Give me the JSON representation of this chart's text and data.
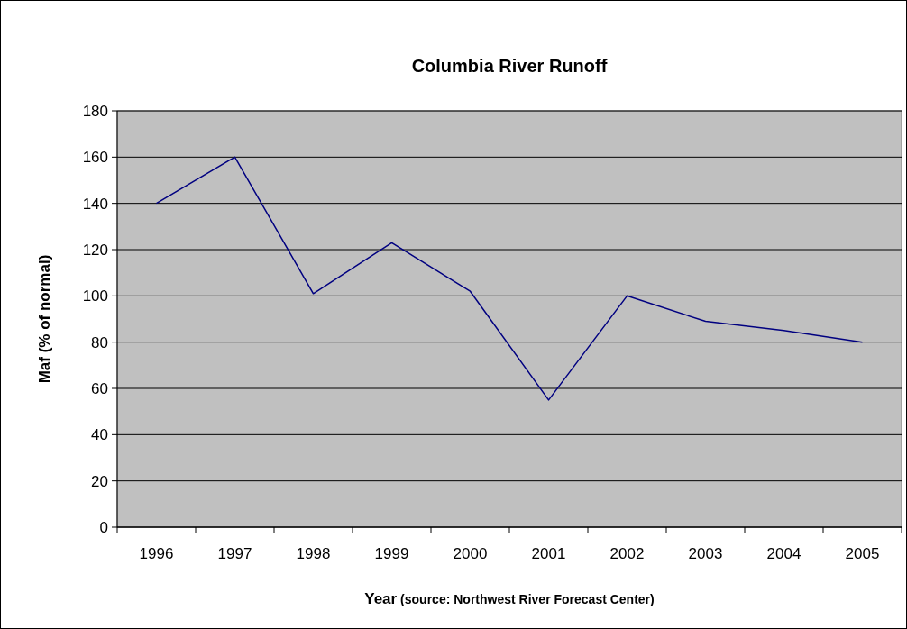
{
  "chart_data": {
    "type": "line",
    "title": "Columbia River Runoff",
    "xlabel": "Year",
    "ylabel": "Maf (% of normal)",
    "annotations": [
      "(source: Northwest River Forecast Center)"
    ],
    "categories": [
      "1996",
      "1997",
      "1998",
      "1999",
      "2000",
      "2001",
      "2002",
      "2003",
      "2004",
      "2005"
    ],
    "series": [
      {
        "color": "#000080",
        "values": [
          140,
          160,
          101,
          123,
          102,
          55,
          100,
          89,
          85,
          80
        ]
      }
    ],
    "ylim": [
      0,
      180
    ],
    "yticks": [
      0,
      20,
      40,
      60,
      80,
      100,
      120,
      140,
      160,
      180
    ],
    "grid": "y",
    "marker": "none",
    "line_style": "solid"
  }
}
